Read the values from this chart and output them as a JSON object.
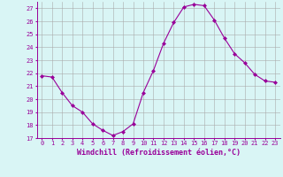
{
  "x": [
    0,
    1,
    2,
    3,
    4,
    5,
    6,
    7,
    8,
    9,
    10,
    11,
    12,
    13,
    14,
    15,
    16,
    17,
    18,
    19,
    20,
    21,
    22,
    23
  ],
  "y": [
    21.8,
    21.7,
    20.5,
    19.5,
    19.0,
    18.1,
    17.6,
    17.2,
    17.5,
    18.1,
    20.5,
    22.2,
    24.3,
    25.9,
    27.1,
    27.3,
    27.2,
    26.1,
    24.7,
    23.5,
    22.8,
    21.9,
    21.4,
    21.3
  ],
  "line_color": "#990099",
  "marker": "D",
  "marker_size": 2.0,
  "bg_color": "#d9f5f5",
  "grid_color": "#aaaaaa",
  "xlabel": "Windchill (Refroidissement éolien,°C)",
  "xlabel_color": "#990099",
  "tick_color": "#990099",
  "ylim": [
    17,
    27.5
  ],
  "xlim": [
    -0.5,
    23.5
  ],
  "yticks": [
    17,
    18,
    19,
    20,
    21,
    22,
    23,
    24,
    25,
    26,
    27
  ],
  "xticks": [
    0,
    1,
    2,
    3,
    4,
    5,
    6,
    7,
    8,
    9,
    10,
    11,
    12,
    13,
    14,
    15,
    16,
    17,
    18,
    19,
    20,
    21,
    22,
    23
  ],
  "tick_fontsize": 5.0,
  "xlabel_fontsize": 6.0,
  "linewidth": 0.8
}
